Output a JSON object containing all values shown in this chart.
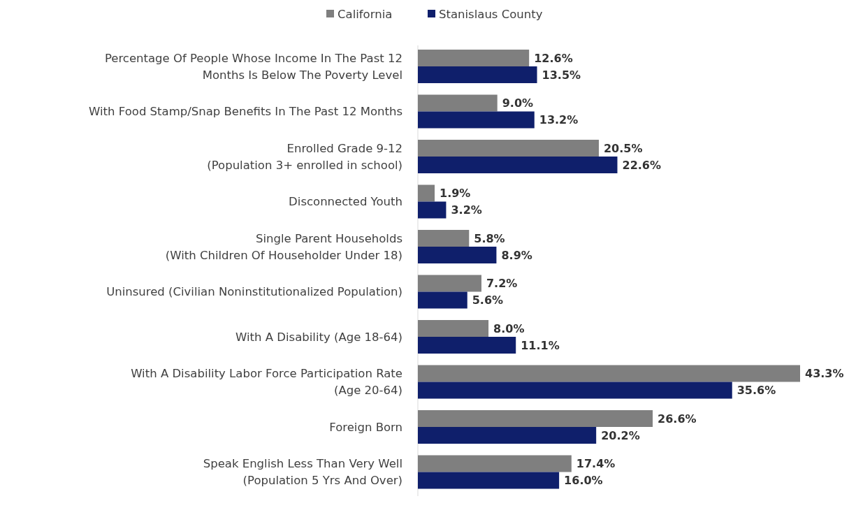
{
  "chart_data": {
    "type": "bar",
    "orientation": "horizontal",
    "legend": "top",
    "categories": [
      "Percentage Of People Whose Income In The Past 12\nMonths Is Below The Poverty Level",
      "With Food Stamp/Snap Benefits In The Past 12 Months",
      "Enrolled Grade 9-12\n(Population 3+ enrolled in school)",
      "Disconnected Youth",
      "Single Parent Households\n(With Children Of Householder Under 18)",
      "Uninsured (Civilian Noninstitutionalized Population)",
      "With A Disability (Age 18-64)",
      "With A Disability Labor Force Participation Rate\n(Age 20-64)",
      "Foreign Born",
      "Speak English Less Than Very Well\n(Population 5 Yrs And Over)"
    ],
    "series": [
      {
        "name": "California",
        "color": "#7f7f7f",
        "values": [
          12.6,
          9.0,
          20.5,
          1.9,
          5.8,
          7.2,
          8.0,
          43.3,
          26.6,
          17.4
        ],
        "value_labels": [
          "12.6%",
          "9.0%",
          "20.5%",
          "1.9%",
          "5.8%",
          "7.2%",
          "8.0%",
          "43.3%",
          "26.6%",
          "17.4%"
        ]
      },
      {
        "name": "Stanislaus County",
        "color": "#0f1f6b",
        "values": [
          13.5,
          13.2,
          22.6,
          3.2,
          8.9,
          5.6,
          11.1,
          35.6,
          20.2,
          16.0
        ],
        "value_labels": [
          "13.5%",
          "13.2%",
          "22.6%",
          "3.2%",
          "8.9%",
          "5.6%",
          "11.1%",
          "35.6%",
          "20.2%",
          "16.0%"
        ]
      }
    ]
  }
}
